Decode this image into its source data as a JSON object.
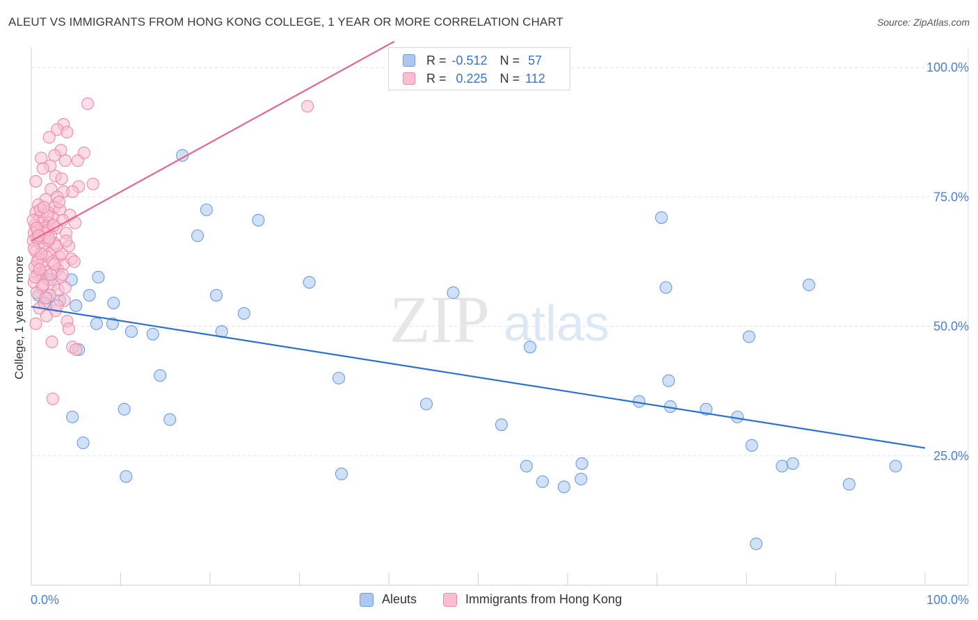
{
  "title": "ALEUT VS IMMIGRANTS FROM HONG KONG COLLEGE, 1 YEAR OR MORE CORRELATION CHART",
  "source": "Source: ZipAtlas.com",
  "watermark": {
    "zip": "ZIP",
    "atlas": "atlas"
  },
  "legend": {
    "rows": [
      {
        "r_label": "R =",
        "r_value": "-0.512",
        "n_label": "N =",
        "n_value": "57",
        "color": "#aac8f0",
        "border": "#6b9be0"
      },
      {
        "r_label": "R =",
        "r_value": "0.225",
        "n_label": "N =",
        "n_value": "112",
        "color": "#f9bfd0",
        "border": "#ec8aa8"
      }
    ]
  },
  "bottom_legend": {
    "aleuts": "Aleuts",
    "hk": "Immigrants from Hong Kong"
  },
  "chart_data": {
    "type": "scatter",
    "xlabel": "",
    "ylabel": "College, 1 year or more",
    "xlim": [
      0,
      100
    ],
    "ylim": [
      0,
      105
    ],
    "x_tick_labels": {
      "left": "0.0%",
      "right": "100.0%"
    },
    "y_ticks": [
      {
        "value": 25,
        "label": "25.0%"
      },
      {
        "value": 50,
        "label": "50.0%"
      },
      {
        "value": 75,
        "label": "75.0%"
      },
      {
        "value": 100,
        "label": "100.0%"
      }
    ],
    "grid": true,
    "legend_position": "top-center",
    "series": [
      {
        "name": "Aleuts",
        "color": "#aac8f0",
        "edge": "#6b9be0",
        "line_color": "#2b6fd1",
        "trend": {
          "x": [
            0,
            100
          ],
          "y": [
            53.8,
            26.5
          ]
        },
        "points": [
          [
            0.8,
            56.0
          ],
          [
            1.2,
            60.0
          ],
          [
            1.8,
            55.5
          ],
          [
            2.2,
            59.0
          ],
          [
            2.5,
            60.5
          ],
          [
            3.2,
            55.0
          ],
          [
            4.5,
            59.0
          ],
          [
            5.0,
            54.0
          ],
          [
            6.5,
            56.0
          ],
          [
            7.5,
            59.5
          ],
          [
            9.2,
            54.5
          ],
          [
            7.3,
            50.5
          ],
          [
            9.1,
            50.5
          ],
          [
            11.2,
            49.0
          ],
          [
            13.6,
            48.5
          ],
          [
            14.4,
            40.5
          ],
          [
            10.4,
            34.0
          ],
          [
            4.6,
            32.5
          ],
          [
            15.5,
            32.0
          ],
          [
            5.8,
            27.5
          ],
          [
            10.6,
            21.0
          ],
          [
            16.9,
            83.0
          ],
          [
            18.6,
            67.5
          ],
          [
            19.6,
            72.5
          ],
          [
            20.7,
            56.0
          ],
          [
            21.3,
            49.0
          ],
          [
            25.4,
            70.5
          ],
          [
            23.8,
            52.5
          ],
          [
            31.1,
            58.5
          ],
          [
            34.4,
            40.0
          ],
          [
            34.7,
            21.5
          ],
          [
            44.2,
            35.0
          ],
          [
            47.2,
            56.5
          ],
          [
            52.6,
            31.0
          ],
          [
            55.8,
            46.0
          ],
          [
            55.4,
            23.0
          ],
          [
            57.2,
            20.0
          ],
          [
            59.6,
            19.0
          ],
          [
            61.5,
            20.5
          ],
          [
            61.6,
            23.5
          ],
          [
            68.0,
            35.5
          ],
          [
            70.5,
            71.0
          ],
          [
            71.0,
            57.5
          ],
          [
            71.3,
            39.5
          ],
          [
            71.5,
            34.5
          ],
          [
            75.5,
            34.0
          ],
          [
            79.0,
            32.5
          ],
          [
            80.3,
            48.0
          ],
          [
            80.6,
            27.0
          ],
          [
            81.1,
            8.0
          ],
          [
            84.0,
            23.0
          ],
          [
            85.2,
            23.5
          ],
          [
            87.0,
            58.0
          ],
          [
            91.5,
            19.5
          ],
          [
            96.7,
            23.0
          ],
          [
            5.3,
            45.5
          ],
          [
            1.5,
            54.5
          ]
        ]
      },
      {
        "name": "Immigrants from Hong Kong",
        "color": "#f9bfd0",
        "edge": "#ec8aa8",
        "line_color": "#e8638d",
        "trend": {
          "x": [
            0,
            40.6
          ],
          "y": [
            66.5,
            105.0
          ]
        },
        "points": [
          [
            6.3,
            93.0
          ],
          [
            3.6,
            89.0
          ],
          [
            2.9,
            88.0
          ],
          [
            4.0,
            87.5
          ],
          [
            2.0,
            86.5
          ],
          [
            3.3,
            84.0
          ],
          [
            5.9,
            83.5
          ],
          [
            2.6,
            83.0
          ],
          [
            1.1,
            82.5
          ],
          [
            3.8,
            82.0
          ],
          [
            5.2,
            82.0
          ],
          [
            2.1,
            81.0
          ],
          [
            1.3,
            80.5
          ],
          [
            2.7,
            79.0
          ],
          [
            3.4,
            78.5
          ],
          [
            0.5,
            78.0
          ],
          [
            6.9,
            77.5
          ],
          [
            5.3,
            77.0
          ],
          [
            2.2,
            76.5
          ],
          [
            3.6,
            76.0
          ],
          [
            4.6,
            76.0
          ],
          [
            2.9,
            75.0
          ],
          [
            1.6,
            74.5
          ],
          [
            0.8,
            73.5
          ],
          [
            2.6,
            73.0
          ],
          [
            3.2,
            72.5
          ],
          [
            0.5,
            72.0
          ],
          [
            1.9,
            72.0
          ],
          [
            4.3,
            71.5
          ],
          [
            0.9,
            71.0
          ],
          [
            2.4,
            71.0
          ],
          [
            3.5,
            70.5
          ],
          [
            1.2,
            70.0
          ],
          [
            2.0,
            70.0
          ],
          [
            4.9,
            70.0
          ],
          [
            0.4,
            69.5
          ],
          [
            1.5,
            69.0
          ],
          [
            2.8,
            69.0
          ],
          [
            0.7,
            68.5
          ],
          [
            1.8,
            68.5
          ],
          [
            3.9,
            68.0
          ],
          [
            0.3,
            68.0
          ],
          [
            1.0,
            67.5
          ],
          [
            2.2,
            67.5
          ],
          [
            0.6,
            67.0
          ],
          [
            1.4,
            67.0
          ],
          [
            0.2,
            66.5
          ],
          [
            0.9,
            66.0
          ],
          [
            2.6,
            66.0
          ],
          [
            4.2,
            65.5
          ],
          [
            1.3,
            65.0
          ],
          [
            0.5,
            64.5
          ],
          [
            2.0,
            64.0
          ],
          [
            3.1,
            63.5
          ],
          [
            1.7,
            63.5
          ],
          [
            4.5,
            63.0
          ],
          [
            0.8,
            63.0
          ],
          [
            2.4,
            62.5
          ],
          [
            3.6,
            62.0
          ],
          [
            1.1,
            62.0
          ],
          [
            0.4,
            61.5
          ],
          [
            2.9,
            61.0
          ],
          [
            1.6,
            60.5
          ],
          [
            0.7,
            60.0
          ],
          [
            3.3,
            59.5
          ],
          [
            1.9,
            59.0
          ],
          [
            0.3,
            58.5
          ],
          [
            2.5,
            58.0
          ],
          [
            1.2,
            57.5
          ],
          [
            3.0,
            57.0
          ],
          [
            0.6,
            56.5
          ],
          [
            2.1,
            56.0
          ],
          [
            3.7,
            55.0
          ],
          [
            1.4,
            54.5
          ],
          [
            0.9,
            53.5
          ],
          [
            2.7,
            53.0
          ],
          [
            1.7,
            52.0
          ],
          [
            4.0,
            51.0
          ],
          [
            0.5,
            50.5
          ],
          [
            4.2,
            49.5
          ],
          [
            2.3,
            47.0
          ],
          [
            4.6,
            46.0
          ],
          [
            5.0,
            45.5
          ],
          [
            2.4,
            36.0
          ],
          [
            30.9,
            92.5
          ],
          [
            1.0,
            72.5
          ],
          [
            1.5,
            68.0
          ],
          [
            0.2,
            70.5
          ],
          [
            3.4,
            64.0
          ],
          [
            2.8,
            65.5
          ],
          [
            1.9,
            66.5
          ],
          [
            0.7,
            62.5
          ],
          [
            2.2,
            60.0
          ],
          [
            3.8,
            57.5
          ],
          [
            1.3,
            58.0
          ],
          [
            0.4,
            59.5
          ],
          [
            2.6,
            62.0
          ],
          [
            1.8,
            71.5
          ],
          [
            3.1,
            74.0
          ],
          [
            0.6,
            69.0
          ],
          [
            1.1,
            64.0
          ],
          [
            2.0,
            67.0
          ],
          [
            4.8,
            62.5
          ],
          [
            0.9,
            61.0
          ],
          [
            3.5,
            60.0
          ],
          [
            1.6,
            55.5
          ],
          [
            2.9,
            54.0
          ],
          [
            0.3,
            65.0
          ],
          [
            1.4,
            73.0
          ],
          [
            2.5,
            69.5
          ],
          [
            3.9,
            66.5
          ],
          [
            0.8,
            67.5
          ]
        ]
      }
    ]
  }
}
